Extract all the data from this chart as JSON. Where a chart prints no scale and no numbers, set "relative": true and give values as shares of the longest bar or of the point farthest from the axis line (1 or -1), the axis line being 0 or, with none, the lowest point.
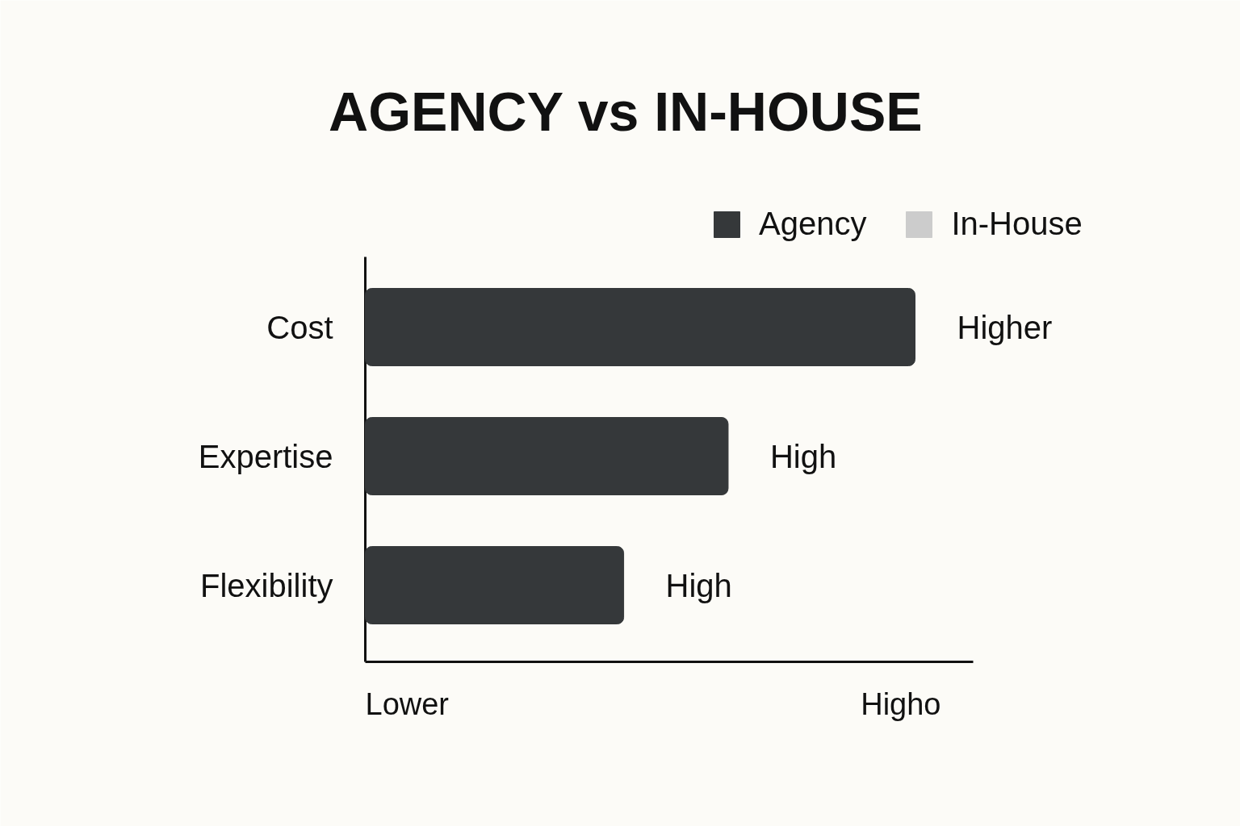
{
  "chart_data": {
    "type": "bar",
    "orientation": "horizontal",
    "relative": true,
    "title": "AGENCY vs IN-HOUSE",
    "categories": [
      "Cost",
      "Expertise",
      "Flexibility"
    ],
    "series": [
      {
        "name": "Agency",
        "color": "#35383a",
        "values": [
          1,
          0.66,
          0.47
        ]
      },
      {
        "name": "In-House",
        "color": "#cccccc",
        "values": [
          null,
          null,
          null
        ]
      }
    ],
    "annotations": [
      {
        "text": "Higher",
        "x": 1,
        "y": "Cost"
      },
      {
        "text": "High",
        "x": 0.66,
        "y": "Expertise"
      },
      {
        "text": "High",
        "x": 0.47,
        "y": "Flexibility"
      },
      "Lower",
      "Higho"
    ],
    "legend": "top right",
    "grid": false
  }
}
